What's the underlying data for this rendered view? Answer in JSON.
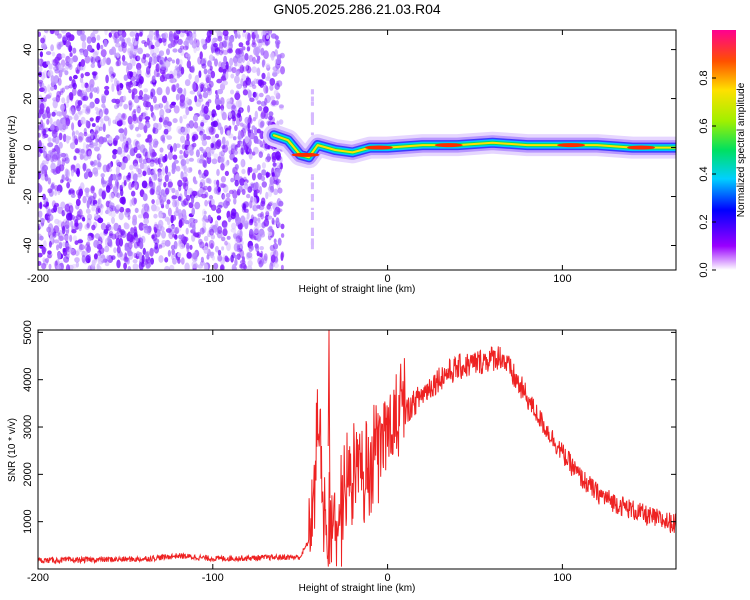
{
  "title": "GN05.2025.286.21.03.R04",
  "chart_data": [
    {
      "type": "heatmap",
      "xlabel": "Height of straight line (km)",
      "ylabel": "Frequency (Hz)",
      "xlim": [
        -200,
        165
      ],
      "ylim": [
        -50,
        48
      ],
      "xticks": [
        "-200",
        "-100",
        "0",
        "100"
      ],
      "yticks": [
        "-40",
        "-20",
        "0",
        "20",
        "40"
      ],
      "colorbar": {
        "label": "Normalized spectral amplitude",
        "range": [
          0,
          1
        ],
        "ticks": [
          "0.0",
          "0.2",
          "0.4",
          "0.6",
          "0.8"
        ]
      },
      "noise_region_x": [
        -200,
        -60
      ],
      "signal_ridge": {
        "x": [
          -65,
          -57,
          -50,
          -45,
          -40,
          -30,
          -20,
          -10,
          0,
          20,
          40,
          60,
          80,
          100,
          120,
          140,
          165
        ],
        "freq": [
          5,
          3,
          -3,
          -4,
          1,
          -1,
          -2,
          0,
          0,
          1,
          1,
          2,
          1,
          1,
          1,
          0,
          0
        ]
      }
    },
    {
      "type": "line",
      "xlabel": "Height of straight line (km)",
      "ylabel": "SNR (10 * v/v)",
      "xlim": [
        -200,
        165
      ],
      "ylim": [
        0,
        5050
      ],
      "xticks": [
        "-200",
        "-100",
        "0",
        "100"
      ],
      "yticks": [
        "1000",
        "2000",
        "3000",
        "4000",
        "5000"
      ],
      "series": [
        {
          "color": "#ee2222",
          "x": [
            -200,
            -180,
            -160,
            -140,
            -125,
            -120,
            -100,
            -80,
            -60,
            -50,
            -45,
            -42,
            -40,
            -38,
            -36,
            -34,
            -30,
            -25,
            -20,
            -15,
            -10,
            0,
            10,
            20,
            30,
            40,
            50,
            60,
            65,
            70,
            80,
            90,
            100,
            110,
            120,
            130,
            140,
            150,
            160,
            165
          ],
          "y": [
            180,
            190,
            200,
            210,
            260,
            280,
            220,
            230,
            250,
            250,
            600,
            1800,
            3300,
            2500,
            1200,
            700,
            1100,
            1500,
            1800,
            2200,
            2500,
            2900,
            3300,
            3700,
            4050,
            4250,
            4350,
            4450,
            4500,
            4200,
            3600,
            3000,
            2450,
            1950,
            1600,
            1400,
            1250,
            1100,
            1000,
            950
          ]
        }
      ]
    }
  ]
}
